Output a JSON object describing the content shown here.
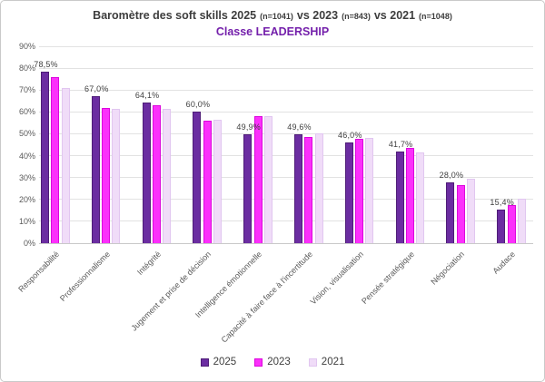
{
  "header": {
    "title_segments": [
      {
        "text": "Baromètre des soft skills 2025",
        "small": false
      },
      {
        "text": "(n=1041)",
        "small": true
      },
      {
        "text": "vs 2023",
        "small": false
      },
      {
        "text": "(n=843)",
        "small": true
      },
      {
        "text": "vs 2021",
        "small": false
      },
      {
        "text": "(n=1048)",
        "small": true
      }
    ],
    "subtitle": "Classe LEADERSHIP",
    "subtitle_color": "#7420ab",
    "title_color": "#3d3d3d"
  },
  "chart_data": {
    "type": "bar",
    "title": "Baromètre des soft skills 2025 (n=1041) vs 2023 (n=843) vs 2021 (n=1048)",
    "subtitle": "Classe LEADERSHIP",
    "categories": [
      "Responsabilité",
      "Professionnalisme",
      "Intégrité",
      "Jugement et prise de décision",
      "Intelligence émotionnelle",
      "Capacité à faire face à l'incertitude",
      "Vision, visualisation",
      "Pensée stratégique",
      "Négociation",
      "Audace"
    ],
    "series": [
      {
        "name": "2025",
        "color": "#6b2da1",
        "border_color": "#4e1c77",
        "values": [
          78.5,
          67.0,
          64.1,
          60.0,
          49.9,
          49.6,
          46.0,
          41.7,
          28.0,
          15.4
        ],
        "value_labels": [
          "78,5%",
          "67,0%",
          "64,1%",
          "60,0%",
          "49,9%",
          "49,6%",
          "46,0%",
          "41,7%",
          "28,0%",
          "15,4%"
        ]
      },
      {
        "name": "2023",
        "color": "#fb30fb",
        "border_color": "#dc06dc",
        "values": [
          76.0,
          62.0,
          63.0,
          56.0,
          58.0,
          48.5,
          47.5,
          43.5,
          26.5,
          17.5
        ]
      },
      {
        "name": "2021",
        "color": "#f0dcf8",
        "border_color": "#e1c6f0",
        "values": [
          71.0,
          61.5,
          61.5,
          56.5,
          58.0,
          50.0,
          48.0,
          41.5,
          29.5,
          20.5
        ]
      }
    ],
    "xlabel": "",
    "ylabel": "",
    "ylim": [
      0,
      90
    ],
    "ytick_step": 10,
    "ytick_labels": [
      "0%",
      "10%",
      "20%",
      "30%",
      "40%",
      "50%",
      "60%",
      "70%",
      "80%",
      "90%"
    ],
    "grid": true,
    "legend_position": "bottom",
    "value_label_series": "2025"
  }
}
